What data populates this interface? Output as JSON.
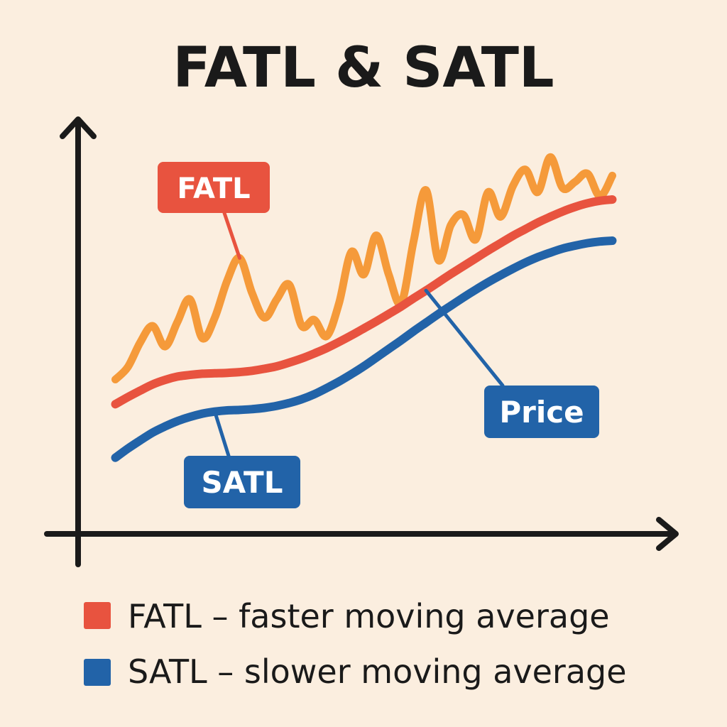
{
  "chart_data": {
    "type": "line",
    "title": "FATL & SATL",
    "xlabel": "",
    "ylabel": "",
    "x": [
      0,
      1,
      2,
      3,
      4,
      5,
      6,
      7,
      8,
      9,
      10,
      11,
      12,
      13,
      14,
      15,
      16,
      17,
      18,
      19,
      20,
      21,
      22,
      23,
      24,
      25,
      26,
      27,
      28,
      29,
      30,
      31,
      32,
      33,
      34,
      35,
      36,
      37,
      38,
      39,
      40
    ],
    "xlim": [
      -3,
      45
    ],
    "ylim": [
      0,
      100
    ],
    "grid": false,
    "series": [
      {
        "name": "Price",
        "color": "#F59A3A",
        "values": [
          37.5,
          40.5,
          46.5,
          50.5,
          45.5,
          51.5,
          57,
          47.5,
          52.5,
          61.5,
          67,
          58.5,
          52.5,
          57,
          60.5,
          50.5,
          52,
          48,
          56,
          68.5,
          63,
          72.5,
          63,
          56,
          71,
          83.5,
          66.5,
          75,
          77.5,
          71.5,
          83,
          77,
          84.5,
          88.5,
          83,
          91.5,
          84,
          85.5,
          87.5,
          82,
          87
        ]
      },
      {
        "name": "FATL",
        "color": "#E8533F",
        "values": [
          31.5,
          33.2,
          34.8,
          36.3,
          37.4,
          38.2,
          38.6,
          38.9,
          39,
          39.1,
          39.3,
          39.6,
          40.1,
          40.7,
          41.6,
          42.6,
          43.8,
          45.1,
          46.6,
          48.2,
          49.9,
          51.6,
          53.4,
          55.2,
          57.2,
          59.1,
          61.1,
          63.1,
          65,
          66.9,
          68.8,
          70.6,
          72.4,
          74,
          75.6,
          77,
          78.3,
          79.4,
          80.3,
          80.9,
          81.2
        ]
      },
      {
        "name": "SATL",
        "color": "#2263A8",
        "values": [
          18.5,
          20.7,
          22.7,
          24.6,
          26.1,
          27.4,
          28.4,
          29.2,
          29.7,
          30,
          30.1,
          30.3,
          30.6,
          31.1,
          31.8,
          32.7,
          33.9,
          35.4,
          37,
          38.8,
          40.7,
          42.8,
          44.9,
          47,
          49.2,
          51.3,
          53.4,
          55.4,
          57.4,
          59.3,
          61.1,
          62.8,
          64.4,
          65.9,
          67.2,
          68.3,
          69.3,
          70,
          70.6,
          71,
          71.2
        ]
      }
    ],
    "callouts": [
      {
        "label": "FATL",
        "series": "Price",
        "x": 10
      },
      {
        "label": "SATL",
        "series": "SATL",
        "x": 8
      },
      {
        "label": "Price",
        "series": "FATL",
        "x": 25
      }
    ],
    "legend": {
      "placement": "bottom-left",
      "entries": [
        {
          "color": "#E8533F",
          "label": "FATL – faster moving average"
        },
        {
          "color": "#2263A8",
          "label": "SATL – slower moving average"
        }
      ]
    }
  },
  "colors": {
    "background": "#FBEEDF",
    "axis": "#1a1a1a",
    "title": "#1a1a1a",
    "fatl_callout": "#E8533F",
    "satl_callout": "#2263A8",
    "price_callout": "#2263A8"
  }
}
